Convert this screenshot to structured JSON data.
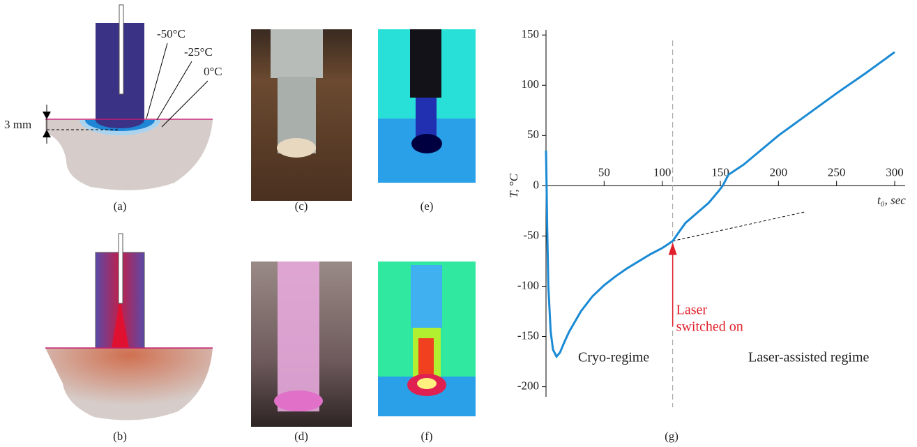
{
  "figure": {
    "panel_labels": [
      "(a)",
      "(b)",
      "(c)",
      "(d)",
      "(e)",
      "(f)",
      "(g)"
    ],
    "diagram_a": {
      "temps": [
        "-50°C",
        "-25°C",
        "0°C"
      ],
      "depth": "3 mm"
    }
  },
  "chart_data": {
    "type": "line",
    "x_label": "t₀, sec",
    "y_label": "T, °C",
    "xlim": [
      0,
      300
    ],
    "ylim": [
      -210,
      155
    ],
    "xticks": [
      50,
      100,
      150,
      200,
      250,
      300
    ],
    "yticks": [
      -200,
      -150,
      -100,
      -50,
      0,
      50,
      100,
      150
    ],
    "series": [
      {
        "color": "#1a8ad4",
        "x": [
          0,
          0.5,
          1,
          2,
          4,
          6,
          9,
          12,
          16,
          20,
          30,
          40,
          50,
          60,
          70,
          80,
          90,
          100,
          109,
          115,
          120,
          130,
          140,
          148,
          152,
          157,
          170,
          200,
          225,
          250,
          275,
          300
        ],
        "values": [
          35,
          0,
          -40,
          -100,
          -145,
          -163,
          -170,
          -166,
          -155,
          -145,
          -125,
          -110,
          -99,
          -90,
          -82,
          -75,
          -68,
          -62,
          -55,
          -45,
          -37,
          -27,
          -17,
          -6,
          0,
          11,
          21,
          50,
          71,
          92,
          112,
          133
        ]
      }
    ],
    "marker_x": 109,
    "extrapolation": {
      "x": [
        109,
        223
      ],
      "y": [
        -55,
        -26
      ]
    },
    "annotations": {
      "laser": [
        "Laser",
        "switched on"
      ],
      "cryo": "Cryo-regime",
      "laser_regime": "Laser-assisted regime"
    }
  }
}
